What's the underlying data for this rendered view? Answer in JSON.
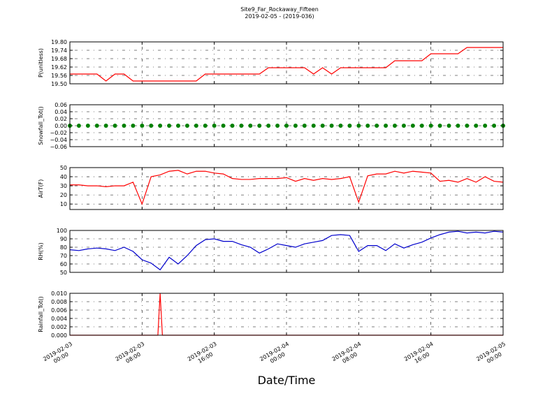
{
  "title": "Site9_Far_Rockaway_Fifteen",
  "subtitle": "2019-02-05 - (2019-036)",
  "xlabel": "Date/Time",
  "xlim": [
    "2019-02-03 00:00",
    "2019-02-05 00:00"
  ],
  "xticks": [
    {
      "value": "2019-02-03 00:00",
      "label": [
        "2019-02-03",
        "00:00"
      ]
    },
    {
      "value": "2019-02-03 08:00",
      "label": [
        "2019-02-03",
        "08:00"
      ]
    },
    {
      "value": "2019-02-03 16:00",
      "label": [
        "2019-02-03",
        "16:00"
      ]
    },
    {
      "value": "2019-02-04 00:00",
      "label": [
        "2019-02-04",
        "00:00"
      ]
    },
    {
      "value": "2019-02-04 08:00",
      "label": [
        "2019-02-04",
        "08:00"
      ]
    },
    {
      "value": "2019-02-04 16:00",
      "label": [
        "2019-02-04",
        "16:00"
      ]
    },
    {
      "value": "2019-02-05 00:00",
      "label": [
        "2019-02-05",
        "00:00"
      ]
    }
  ],
  "x": [
    "2019-02-03 00:00",
    "2019-02-03 01:00",
    "2019-02-03 02:00",
    "2019-02-03 03:00",
    "2019-02-03 04:00",
    "2019-02-03 05:00",
    "2019-02-03 06:00",
    "2019-02-03 07:00",
    "2019-02-03 08:00",
    "2019-02-03 09:00",
    "2019-02-03 10:00",
    "2019-02-03 11:00",
    "2019-02-03 12:00",
    "2019-02-03 13:00",
    "2019-02-03 14:00",
    "2019-02-03 15:00",
    "2019-02-03 16:00",
    "2019-02-03 17:00",
    "2019-02-03 18:00",
    "2019-02-03 19:00",
    "2019-02-03 20:00",
    "2019-02-03 21:00",
    "2019-02-03 22:00",
    "2019-02-03 23:00",
    "2019-02-04 00:00",
    "2019-02-04 01:00",
    "2019-02-04 02:00",
    "2019-02-04 03:00",
    "2019-02-04 04:00",
    "2019-02-04 05:00",
    "2019-02-04 06:00",
    "2019-02-04 07:00",
    "2019-02-04 08:00",
    "2019-02-04 09:00",
    "2019-02-04 10:00",
    "2019-02-04 11:00",
    "2019-02-04 12:00",
    "2019-02-04 13:00",
    "2019-02-04 14:00",
    "2019-02-04 15:00",
    "2019-02-04 16:00",
    "2019-02-04 17:00",
    "2019-02-04 18:00",
    "2019-02-04 19:00",
    "2019-02-04 20:00",
    "2019-02-04 21:00",
    "2019-02-04 22:00",
    "2019-02-04 23:00",
    "2019-02-05 00:00"
  ],
  "chart_data": [
    {
      "type": "line",
      "ylabel": "P(unitless)",
      "color": "#ff0000",
      "grid": true,
      "ylim": [
        19.5,
        19.8
      ],
      "yticks": [
        {
          "value": 19.5,
          "label": "19.50"
        },
        {
          "value": 19.56,
          "label": "19.56"
        },
        {
          "value": 19.62,
          "label": "19.62"
        },
        {
          "value": 19.68,
          "label": "19.68"
        },
        {
          "value": 19.74,
          "label": "19.74"
        },
        {
          "value": 19.8,
          "label": "19.80"
        }
      ],
      "values": [
        19.57,
        19.57,
        19.57,
        19.57,
        19.52,
        19.57,
        19.57,
        19.52,
        19.52,
        19.52,
        19.52,
        19.52,
        19.52,
        19.52,
        19.52,
        19.57,
        19.57,
        19.57,
        19.57,
        19.57,
        19.57,
        19.57,
        19.615,
        19.615,
        19.615,
        19.615,
        19.615,
        19.57,
        19.615,
        19.57,
        19.615,
        19.615,
        19.615,
        19.615,
        19.615,
        19.615,
        19.665,
        19.665,
        19.665,
        19.665,
        19.715,
        19.715,
        19.715,
        19.715,
        19.76,
        19.76,
        19.76,
        19.76,
        19.76
      ]
    },
    {
      "type": "scatter",
      "ylabel": "Snowfall_Tot()",
      "color": "#008000",
      "grid": true,
      "ylim": [
        -0.06,
        0.06
      ],
      "yticks": [
        {
          "value": -0.06,
          "label": "−0.06"
        },
        {
          "value": -0.04,
          "label": "−0.04"
        },
        {
          "value": -0.02,
          "label": "−0.02"
        },
        {
          "value": 0,
          "label": "0.00"
        },
        0.02,
        0.04,
        0.06
      ],
      "values": [
        0,
        0,
        0,
        0,
        0,
        0,
        0,
        0,
        0,
        0,
        0,
        0,
        0,
        0,
        0,
        0,
        0,
        0,
        0,
        0,
        0,
        0,
        0,
        0,
        0,
        0,
        0,
        0,
        0,
        0,
        0,
        0,
        0,
        0,
        0,
        0,
        0,
        0,
        0,
        0,
        0,
        0,
        0,
        0,
        0,
        0,
        0,
        0,
        0
      ]
    },
    {
      "type": "line",
      "ylabel": "AirT(F)",
      "color": "#ff0000",
      "grid": true,
      "ylim": [
        4,
        50
      ],
      "yticks": [
        10,
        20,
        30,
        40,
        50
      ],
      "values": [
        31,
        31,
        30,
        30,
        29,
        30,
        30,
        34,
        10,
        40,
        42,
        46,
        47,
        43,
        46,
        46,
        44,
        43,
        38,
        37,
        37,
        38,
        38,
        38,
        39,
        35,
        38,
        36,
        38,
        37,
        38,
        40,
        12,
        41,
        43,
        43,
        46,
        44,
        46,
        45,
        44,
        35,
        36,
        34,
        38,
        34,
        40,
        35,
        34
      ]
    },
    {
      "type": "line",
      "ylabel": "RH(%)",
      "color": "#0000cc",
      "grid": true,
      "ylim": [
        50,
        100
      ],
      "yticks": [
        50,
        60,
        70,
        80,
        90,
        100
      ],
      "values": [
        77,
        76,
        78,
        79,
        78,
        76,
        80,
        75,
        65,
        61,
        53,
        68,
        60,
        70,
        82,
        89,
        90,
        87,
        87,
        83,
        80,
        73,
        78,
        84,
        82,
        80,
        84,
        86,
        88,
        94,
        95,
        94,
        75,
        82,
        82,
        76,
        84,
        79,
        83,
        86,
        91,
        95,
        98,
        99,
        97,
        98,
        97,
        99,
        98
      ]
    },
    {
      "type": "line",
      "ylabel": "Rainfall_Tot()",
      "color": "#ff0000",
      "grid": true,
      "ylim": [
        0,
        0.01
      ],
      "yticks": [
        {
          "value": 0,
          "label": "0.000"
        },
        {
          "value": 0.002,
          "label": "0.002"
        },
        {
          "value": 0.004,
          "label": "0.004"
        },
        {
          "value": 0.006,
          "label": "0.006"
        },
        {
          "value": 0.008,
          "label": "0.008"
        },
        {
          "value": 0.01,
          "label": "0.010"
        }
      ],
      "x": [
        "2019-02-03 00:00",
        "2019-02-03 09:45",
        "2019-02-03 10:00",
        "2019-02-03 10:15",
        "2019-02-05 00:00"
      ],
      "values": [
        0,
        0,
        0.01,
        0,
        0
      ]
    }
  ]
}
